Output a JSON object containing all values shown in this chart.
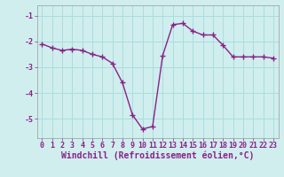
{
  "x": [
    0,
    1,
    2,
    3,
    4,
    5,
    6,
    7,
    8,
    9,
    10,
    11,
    12,
    13,
    14,
    15,
    16,
    17,
    18,
    19,
    20,
    21,
    22,
    23
  ],
  "y": [
    -2.1,
    -2.25,
    -2.35,
    -2.3,
    -2.35,
    -2.5,
    -2.6,
    -2.85,
    -3.6,
    -4.85,
    -5.4,
    -5.3,
    -2.55,
    -1.35,
    -1.3,
    -1.6,
    -1.75,
    -1.75,
    -2.15,
    -2.6,
    -2.6,
    -2.6,
    -2.6,
    -2.65
  ],
  "line_color": "#882288",
  "marker": "+",
  "markersize": 4,
  "markeredgewidth": 1.0,
  "linewidth": 1.0,
  "xlabel": "Windchill (Refroidissement éolien,°C)",
  "xlim": [
    -0.5,
    23.5
  ],
  "ylim": [
    -5.75,
    -0.6
  ],
  "yticks": [
    -5,
    -4,
    -3,
    -2,
    -1
  ],
  "xticks": [
    0,
    1,
    2,
    3,
    4,
    5,
    6,
    7,
    8,
    9,
    10,
    11,
    12,
    13,
    14,
    15,
    16,
    17,
    18,
    19,
    20,
    21,
    22,
    23
  ],
  "bg_color": "#d0eeee",
  "grid_color": "#aadddd",
  "tick_color": "#882288",
  "tick_fontsize": 6.0,
  "xlabel_fontsize": 7.0,
  "xlabel_color": "#882288"
}
